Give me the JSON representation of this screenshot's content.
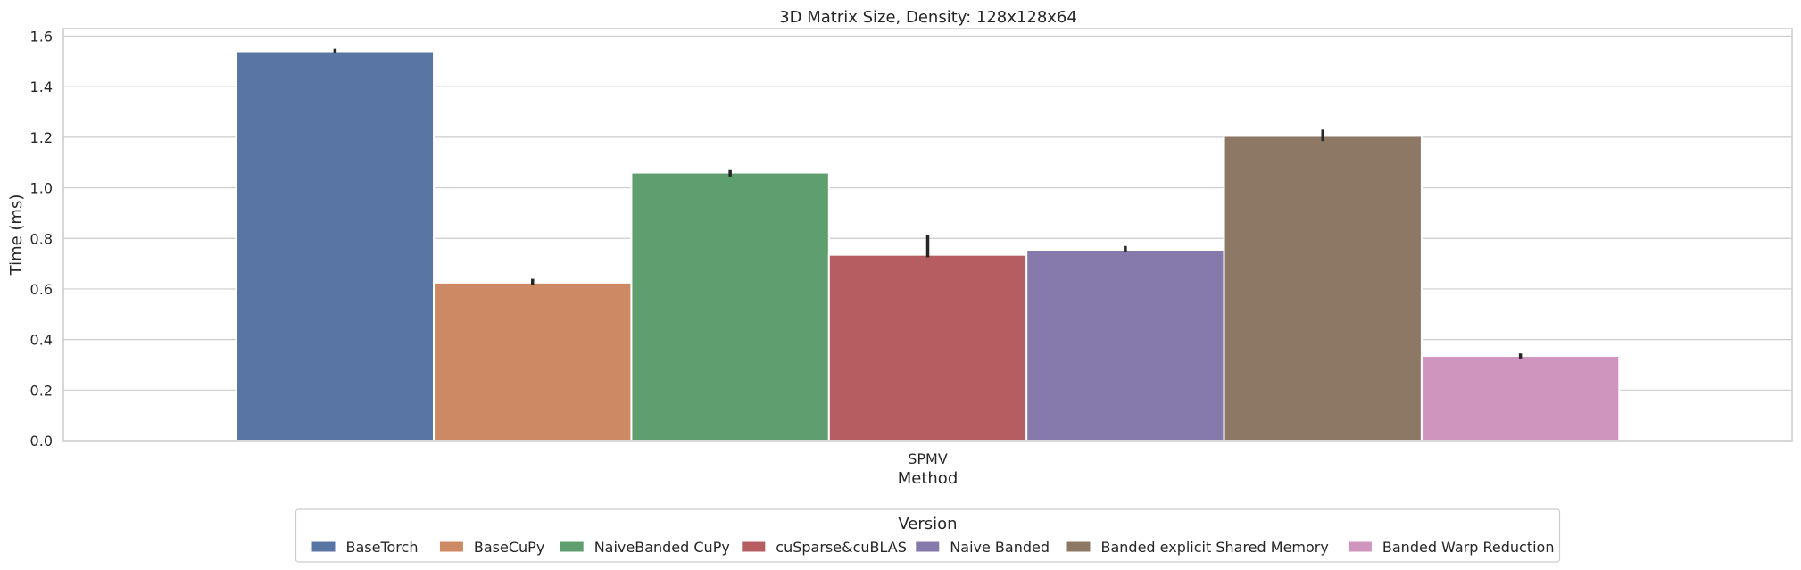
{
  "chart_data": {
    "type": "bar",
    "title": "3D Matrix Size, Density: 128x128x64",
    "xlabel": "Method",
    "ylabel": "Time (ms)",
    "categories": [
      "SPMV"
    ],
    "ylim": [
      0,
      1.63
    ],
    "yticks": [
      "0.0",
      "0.2",
      "0.4",
      "0.6",
      "0.8",
      "1.0",
      "1.2",
      "1.4",
      "1.6"
    ],
    "grid": "y",
    "legend_title": "Version",
    "legend_position": "bottom-center",
    "series": [
      {
        "name": "BaseTorch",
        "values": [
          1.54
        ],
        "err_low": [
          1.535
        ],
        "err_high": [
          1.55
        ],
        "color": "#5875a4"
      },
      {
        "name": "BaseCuPy",
        "values": [
          0.625
        ],
        "err_low": [
          0.615
        ],
        "err_high": [
          0.64
        ],
        "color": "#cc8963"
      },
      {
        "name": "NaiveBanded CuPy",
        "values": [
          1.06
        ],
        "err_low": [
          1.045
        ],
        "err_high": [
          1.07
        ],
        "color": "#5f9e6e"
      },
      {
        "name": "cuSparse&cuBLAS",
        "values": [
          0.735
        ],
        "err_low": [
          0.725
        ],
        "err_high": [
          0.815
        ],
        "color": "#b55d60"
      },
      {
        "name": "Naive Banded",
        "values": [
          0.755
        ],
        "err_low": [
          0.745
        ],
        "err_high": [
          0.77
        ],
        "color": "#857aab"
      },
      {
        "name": "Banded explicit Shared Memory",
        "values": [
          1.205
        ],
        "err_low": [
          1.185
        ],
        "err_high": [
          1.23
        ],
        "color": "#8d7866"
      },
      {
        "name": "Banded Warp Reduction",
        "values": [
          0.335
        ],
        "err_low": [
          0.325
        ],
        "err_high": [
          0.345
        ],
        "color": "#d095bf"
      }
    ]
  }
}
